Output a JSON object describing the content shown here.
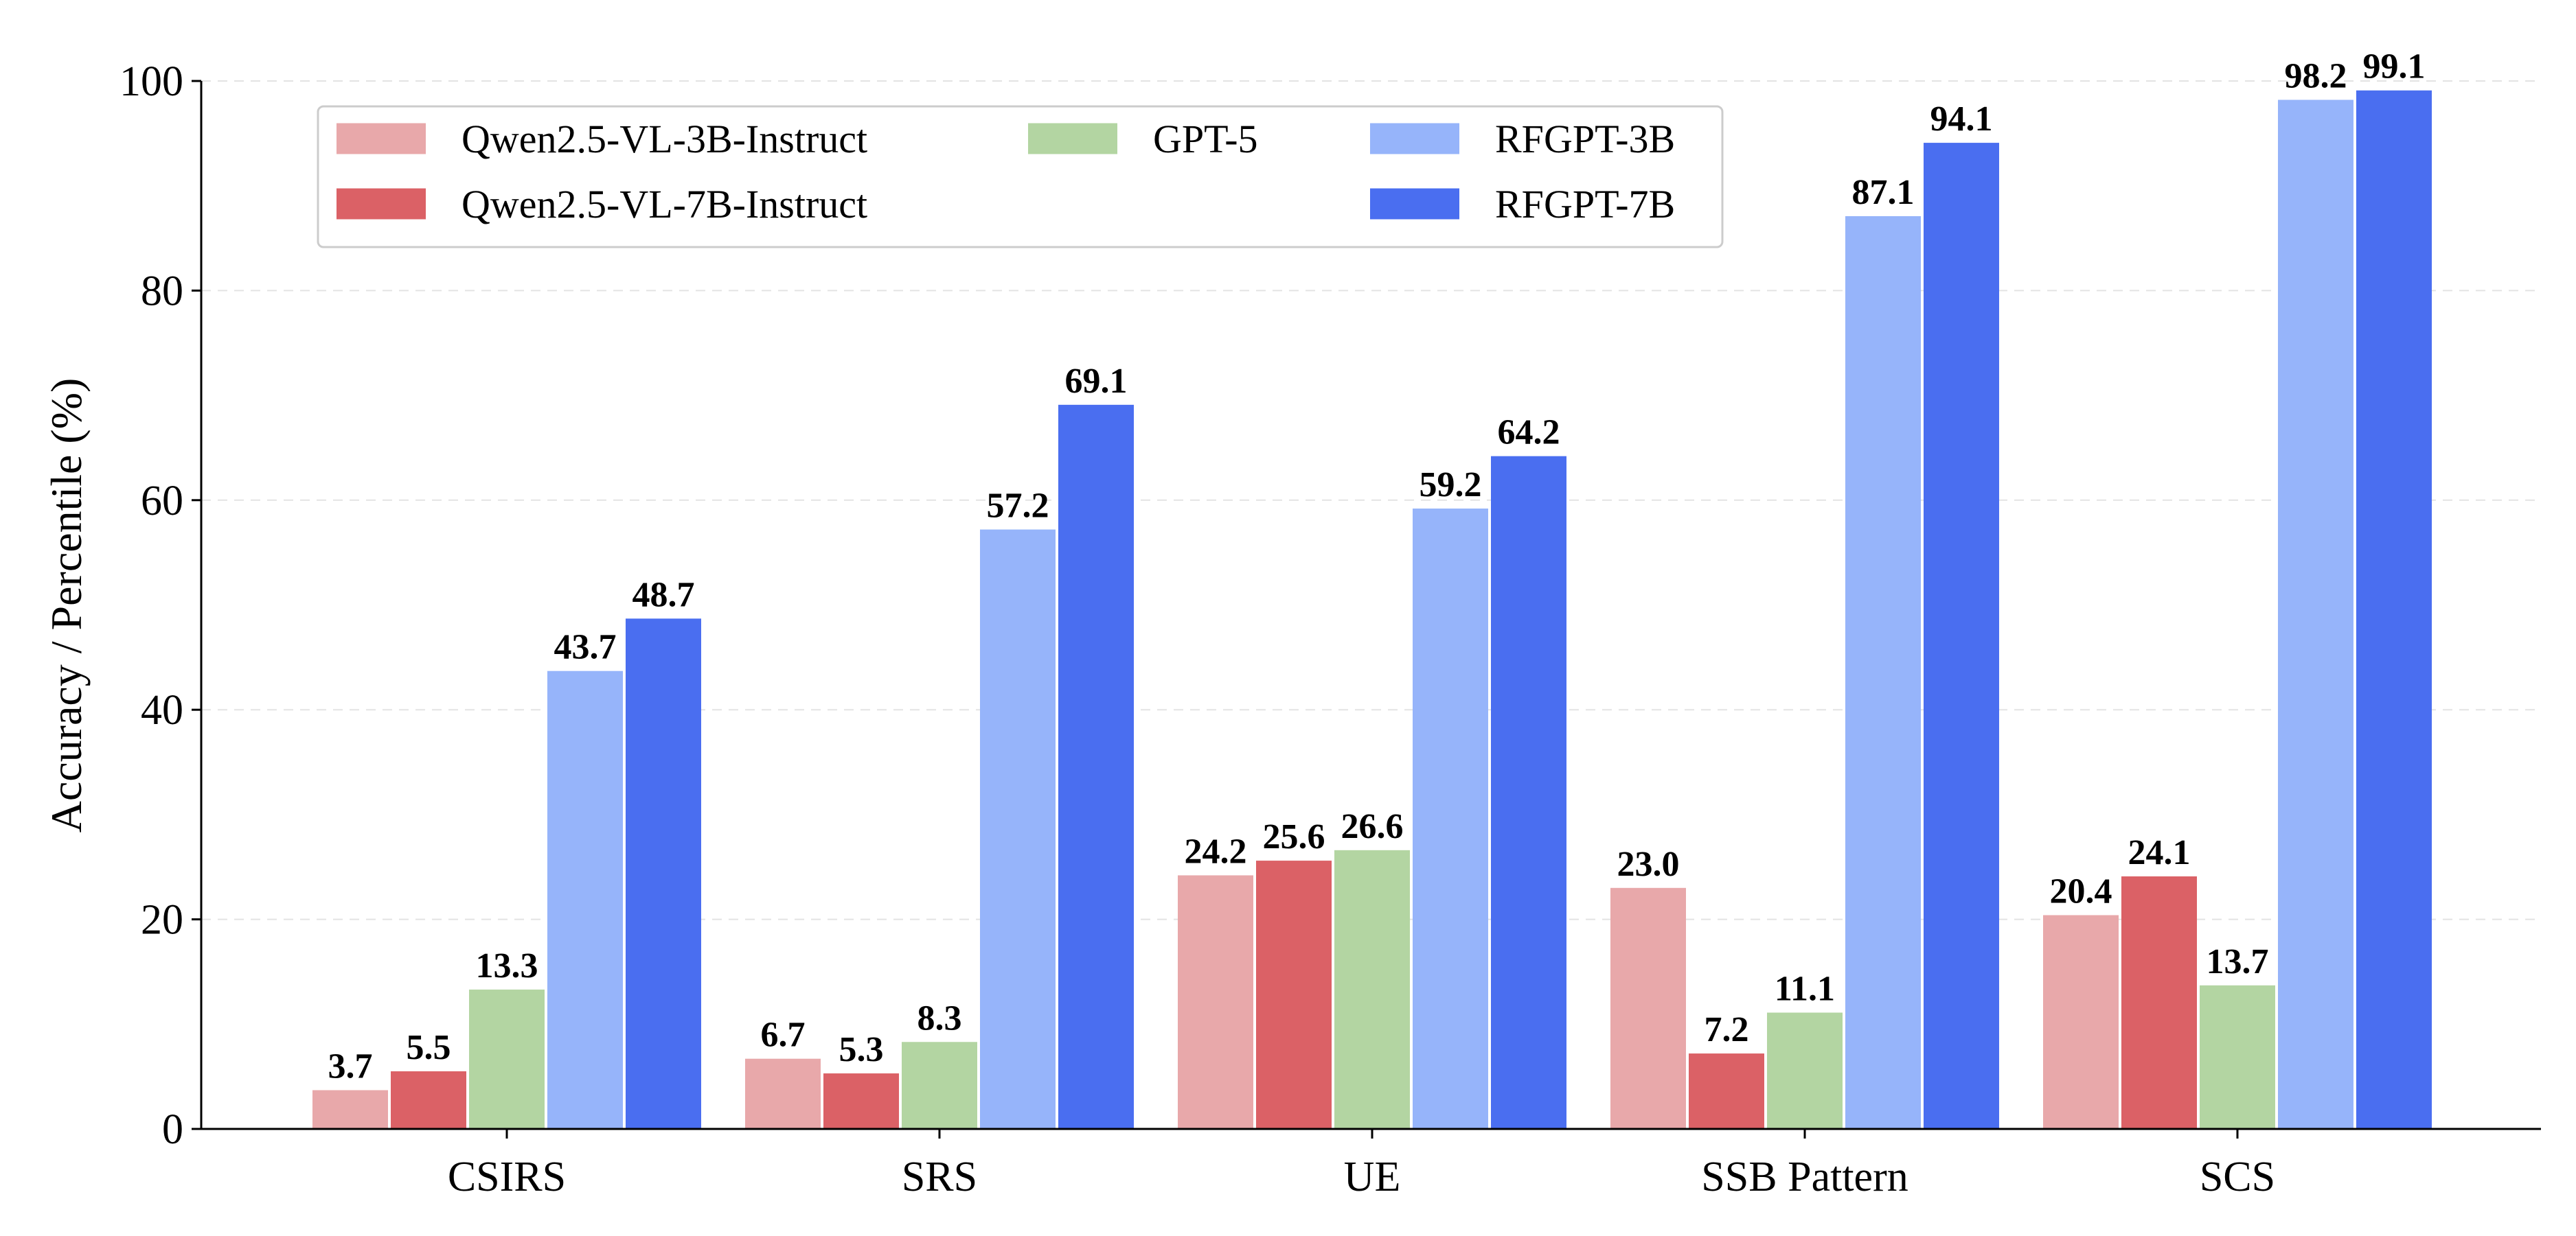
{
  "chart_data": {
    "type": "bar",
    "title": "",
    "xlabel": "",
    "ylabel": "Accuracy / Percentile (%)",
    "ylim": [
      0,
      100
    ],
    "yticks": [
      "0",
      "20",
      "40",
      "60",
      "80",
      "100"
    ],
    "grid": "horizontal-dashed",
    "legend_position": "top-left",
    "categories": [
      "CSIRS",
      "SRS",
      "UE",
      "SSB Pattern",
      "SCS"
    ],
    "series": [
      {
        "name": "Qwen2.5-VL-3B-Instruct",
        "color": "#e8a8aa",
        "values": [
          3.7,
          6.7,
          24.2,
          23.0,
          20.4
        ],
        "labels": [
          "3.7",
          "6.7",
          "24.2",
          "23.0",
          "20.4"
        ]
      },
      {
        "name": "Qwen2.5-VL-7B-Instruct",
        "color": "#db6166",
        "values": [
          5.5,
          5.3,
          25.6,
          7.2,
          24.1
        ],
        "labels": [
          "5.5",
          "5.3",
          "25.6",
          "7.2",
          "24.1"
        ]
      },
      {
        "name": "GPT-5",
        "color": "#b3d5a2",
        "values": [
          13.3,
          8.3,
          26.6,
          11.1,
          13.7
        ],
        "labels": [
          "13.3",
          "8.3",
          "26.6",
          "11.1",
          "13.7"
        ]
      },
      {
        "name": "RFGPT-3B",
        "color": "#96b4fa",
        "values": [
          43.7,
          57.2,
          59.2,
          87.1,
          98.2
        ],
        "labels": [
          "43.7",
          "57.2",
          "59.2",
          "87.1",
          "98.2"
        ]
      },
      {
        "name": "RFGPT-7B",
        "color": "#4a6ef0",
        "values": [
          48.7,
          69.1,
          64.2,
          94.1,
          99.1
        ],
        "labels": [
          "48.7",
          "69.1",
          "64.2",
          "94.1",
          "99.1"
        ]
      }
    ]
  }
}
